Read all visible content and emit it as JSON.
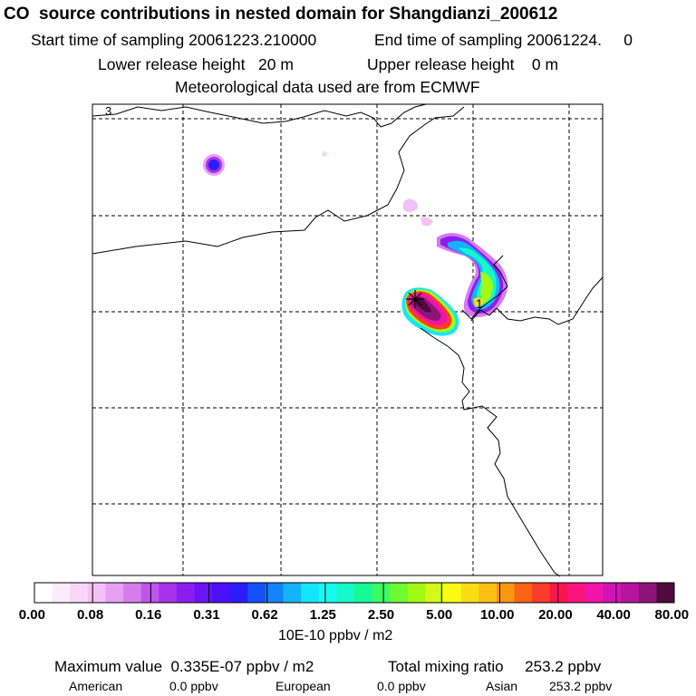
{
  "header": {
    "title": "CO  source contributions in nested domain for Shangdianzi_200612",
    "start_label": "Start time of sampling 20061223.210000",
    "end_label": "End time of sampling 20061224.     0",
    "lower_label": "Lower release height   20 m",
    "upper_label": "Upper release height    0 m",
    "met_label": "Meteorological data used are from ECMWF"
  },
  "map": {
    "corner_label": "3",
    "marker_label": "1",
    "station_marker": "plus-cross"
  },
  "colors": {
    "scale": [
      "#ffffff",
      "#fcebfc",
      "#f8d6f8",
      "#f4c0f6",
      "#e8a0f2",
      "#d77cee",
      "#c055ec",
      "#a832ea",
      "#8a1ef0",
      "#6a14f4",
      "#4a10f8",
      "#2c1cfa",
      "#1450fa",
      "#1482fa",
      "#14b4fa",
      "#14e6fa",
      "#14faf0",
      "#14fac8",
      "#14fa96",
      "#3cfa64",
      "#6efa32",
      "#a0fa14",
      "#d2fa14",
      "#fafa14",
      "#fadc14",
      "#fabe14",
      "#fa9614",
      "#fa6414",
      "#fa3c28",
      "#fa1450",
      "#fa147d",
      "#f014aa",
      "#d214b4",
      "#b414a0",
      "#8c1478",
      "#500a3c"
    ]
  },
  "chart_data": {
    "type": "heatmap",
    "title": "CO  source contributions in nested domain for Shangdianzi_200612",
    "colorbar": {
      "tick_labels": [
        "0.00",
        "0.08",
        "0.16",
        "0.31",
        "0.62",
        "1.25",
        "2.50",
        "5.00",
        "10.00",
        "20.00",
        "40.00",
        "80.00"
      ],
      "ticks": [
        0.0,
        0.08,
        0.16,
        0.31,
        0.62,
        1.25,
        2.5,
        5.0,
        10.0,
        20.0,
        40.0,
        80.0
      ],
      "unit": "10E-10 ppbv / m2"
    },
    "plumes": [
      {
        "level": 0.16,
        "note": "small patch north-west"
      },
      {
        "level": 40.0,
        "note": "main plume near station"
      },
      {
        "level": 5.0,
        "note": "band north-east of station"
      }
    ],
    "grid": true
  },
  "summary": {
    "max_label": "Maximum value  0.335E-07 ppbv / m2",
    "total_label": "Total mixing ratio     253.2 ppbv",
    "american_label": "American",
    "american_value": "0.0 ppbv",
    "european_label": "European",
    "european_value": "0.0 ppbv",
    "asian_label": "Asian",
    "asian_value": "253.2 ppbv"
  }
}
